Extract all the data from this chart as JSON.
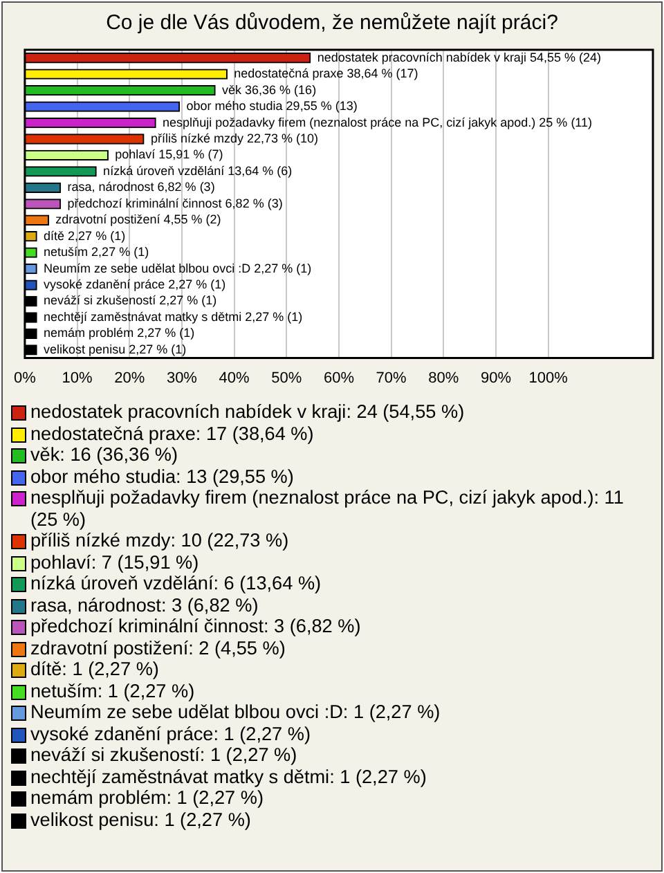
{
  "chart_data": {
    "type": "bar",
    "orientation": "horizontal",
    "title": "Co je dle Vás důvodem, že nemůžete najít práci?",
    "categories": [
      null,
      null,
      null,
      null,
      null,
      null,
      null,
      null,
      null,
      null,
      null,
      null,
      null,
      null,
      null,
      null,
      null,
      null,
      null
    ],
    "values": [
      54.55,
      38.64,
      36.36,
      29.55,
      25,
      22.73,
      15.91,
      13.64,
      6.82,
      6.82,
      4.55,
      2.27,
      2.27,
      2.27,
      2.27,
      2.27,
      2.27,
      2.27,
      2.27
    ],
    "value_labels": [
      "nedostatek pracovních nabídek v kraji 54,55 % (24)",
      "nedostatečná praxe 38,64 % (17)",
      "věk 36,36 % (16)",
      "obor mého studia 29,55 % (13)",
      "nesplňuji požadavky firem (neznalost práce na PC, cizí jakyk apod.) 25 % (11)",
      "příliš nízké mzdy 22,73 % (10)",
      "pohlaví 15,91 % (7)",
      "nízká úroveň vzdělání 13,64 % (6)",
      "rasa, národnost 6,82 % (3)",
      "předchozí kriminální činnost 6,82 % (3)",
      "zdravotní postižení 4,55 % (2)",
      "dítě 2,27 % (1)",
      "netuším 2,27 % (1)",
      "Neumím ze sebe udělat blbou ovci :D 2,27 % (1)",
      "vysoké zdanění práce 2,27 % (1)",
      "neváží si zkušeností 2,27 % (1)",
      "nechtějí zaměstnávat matky s dětmi 2,27 % (1)",
      "nemám problém 2,27 % (1)",
      "velikost penisu 2,27 % (1)"
    ],
    "colors": [
      "#cc2211",
      "#ffee00",
      "#22bb22",
      "#4466ee",
      "#cc22cc",
      "#dd3300",
      "#ccff88",
      "#119955",
      "#227788",
      "#bb55bb",
      "#ee7711",
      "#ddaa11",
      "#44dd22",
      "#6699dd",
      "#2255bb",
      "#000000",
      "#000000",
      "#000000",
      "#000000"
    ],
    "xlim": [
      0,
      120
    ],
    "xticks": [
      {
        "value": 0,
        "label": "0%"
      },
      {
        "value": 10,
        "label": "10%"
      },
      {
        "value": 20,
        "label": "20%"
      },
      {
        "value": 30,
        "label": "30%"
      },
      {
        "value": 40,
        "label": "40%"
      },
      {
        "value": 50,
        "label": "50%"
      },
      {
        "value": 60,
        "label": "60%"
      },
      {
        "value": 70,
        "label": "70%"
      },
      {
        "value": 80,
        "label": "80%"
      },
      {
        "value": 90,
        "label": "90%"
      },
      {
        "value": 100,
        "label": "100%"
      }
    ],
    "grid": "x",
    "tick_labels": "x",
    "legend": false,
    "annotations": [
      "nedostatek pracovních nabídek v kraji: 24 (54,55 %)",
      "nedostatečná praxe: 17 (38,64 %)",
      "věk: 16 (36,36 %)",
      "obor mého studia: 13 (29,55 %)",
      "nesplňuji požadavky firem (neznalost práce na PC, cizí jakyk apod.): 11 (25 %)",
      "příliš nízké mzdy: 10 (22,73 %)",
      "pohlaví: 7 (15,91 %)",
      "nízká úroveň vzdělání: 6 (13,64 %)",
      "rasa, národnost: 3 (6,82 %)",
      "předchozí kriminální činnost: 3 (6,82 %)",
      "zdravotní postižení: 2 (4,55 %)",
      "dítě: 1 (2,27 %)",
      "netuším: 1 (2,27 %)",
      "Neumím ze sebe udělat blbou ovci :D: 1 (2,27 %)",
      "vysoké zdanění práce: 1 (2,27 %)",
      "neváží si zkušeností: 1 (2,27 %)",
      "nechtějí zaměstnávat matky s dětmi: 1 (2,27 %)",
      "nemám problém: 1 (2,27 %)",
      "velikost penisu: 1 (2,27 %)"
    ]
  }
}
